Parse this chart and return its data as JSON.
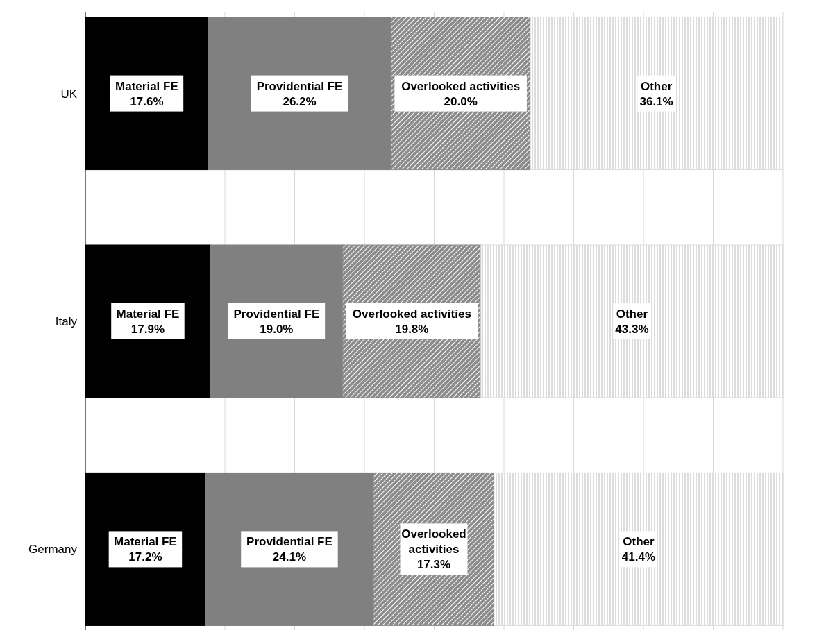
{
  "chart_data": {
    "type": "bar",
    "orientation": "horizontal",
    "stacked": true,
    "categories": [
      "UK",
      "Italy",
      "Germany"
    ],
    "series": [
      {
        "name": "Material FE",
        "color": "#000000",
        "values": [
          17.6,
          17.9,
          17.2
        ],
        "value_labels": [
          "17.6%",
          "17.9%",
          "17.2%"
        ]
      },
      {
        "name": "Providential FE",
        "color": "#808080",
        "values": [
          26.2,
          19.0,
          24.1
        ],
        "value_labels": [
          "26.2%",
          "19.0%",
          "24.1%"
        ]
      },
      {
        "name": "Overlooked activities",
        "color": "#8c8c8c",
        "values": [
          20.0,
          19.8,
          17.3
        ],
        "value_labels": [
          "20.0%",
          "19.8%",
          "17.3%"
        ]
      },
      {
        "name": "Other",
        "color": "#dcdcdc",
        "values": [
          36.1,
          43.3,
          41.4
        ],
        "value_labels": [
          "36.1%",
          "43.3%",
          "41.4%"
        ]
      }
    ],
    "xlim": [
      0,
      100
    ],
    "xticks": [
      {
        "value": 0,
        "label": null
      },
      {
        "value": 10,
        "label": null
      },
      {
        "value": 20,
        "label": null
      },
      {
        "value": 30,
        "label": null
      },
      {
        "value": 40,
        "label": null
      },
      {
        "value": 50,
        "label": null
      },
      {
        "value": 60,
        "label": null
      },
      {
        "value": 70,
        "label": null
      },
      {
        "value": 80,
        "label": null
      },
      {
        "value": 90,
        "label": null
      },
      {
        "value": 100,
        "label": null
      }
    ],
    "tick_labels": "y",
    "grid": "x"
  }
}
